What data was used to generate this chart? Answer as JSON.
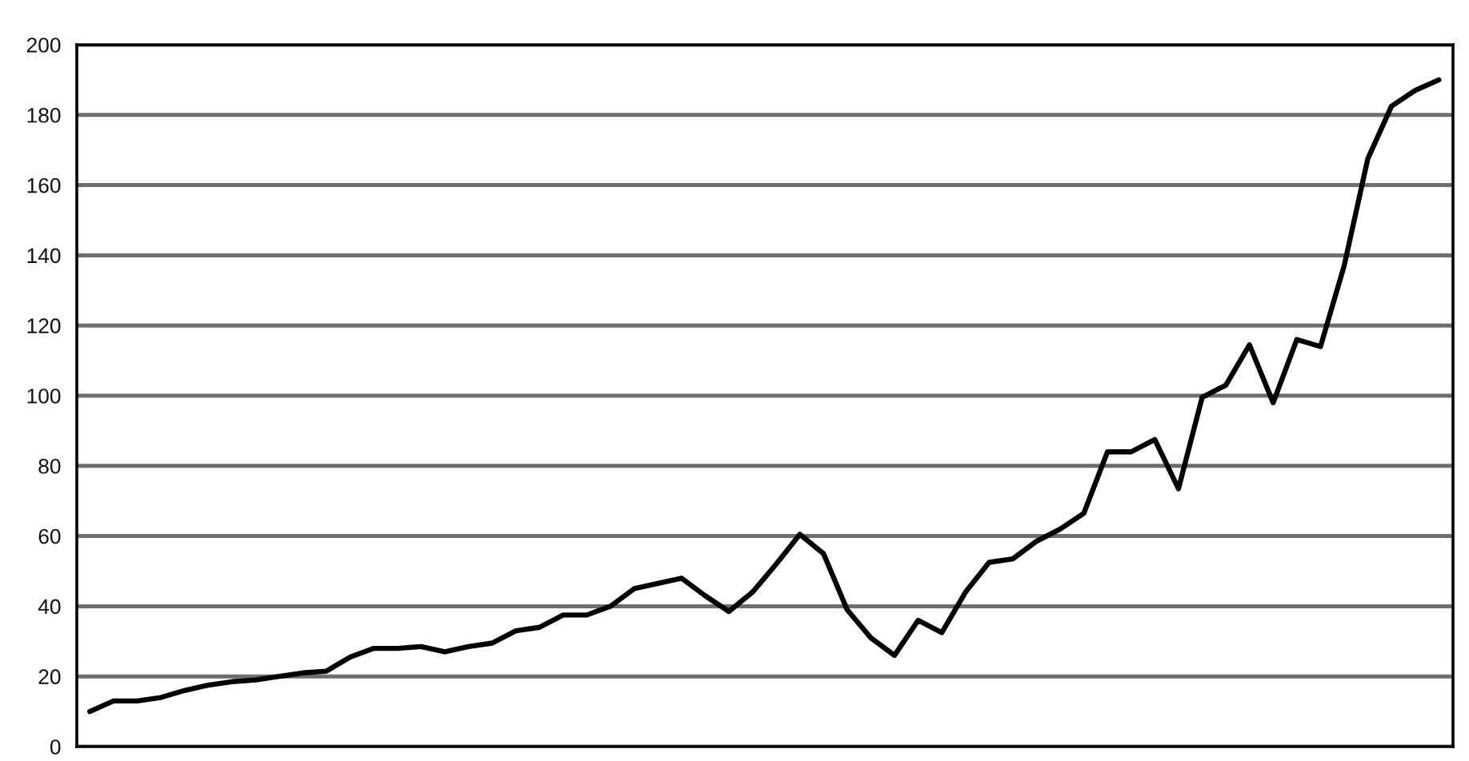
{
  "chart_data": {
    "type": "line",
    "categories": [
      null,
      null,
      null,
      null,
      null,
      null,
      null,
      null,
      null,
      null,
      null,
      null,
      null,
      null,
      null,
      null,
      null,
      null,
      null,
      null,
      null,
      null,
      null,
      null,
      null,
      null,
      null,
      null,
      null,
      null,
      null,
      null,
      null,
      null,
      null,
      null,
      null,
      null,
      null,
      null,
      null,
      null,
      null,
      null,
      null,
      null,
      null,
      null,
      null,
      null,
      null,
      null,
      null,
      null,
      null,
      null,
      null,
      null
    ],
    "series": [
      {
        "color": "#000000",
        "values": [
          10,
          13,
          13,
          14,
          16,
          17.5,
          18.5,
          19,
          20,
          21,
          21.5,
          25.5,
          28,
          28,
          28.5,
          27,
          28.5,
          29.5,
          33,
          34,
          37.5,
          37.5,
          40,
          45,
          46.5,
          48,
          43,
          38.5,
          44,
          52,
          60.5,
          55,
          39,
          31,
          26,
          36,
          32.5,
          44,
          52.5,
          53.5,
          58.5,
          62,
          66.5,
          84,
          84,
          87.5,
          73.5,
          99.5,
          103,
          114.5,
          98,
          116,
          114,
          137,
          167.5,
          182.5,
          187,
          190
        ]
      }
    ],
    "ylim": [
      0,
      200
    ],
    "yticks": [
      0,
      20,
      40,
      60,
      80,
      100,
      120,
      140,
      160,
      180,
      200
    ],
    "grid": "y",
    "marker": "none",
    "line_style": "solid",
    "tick_labels": "y"
  }
}
